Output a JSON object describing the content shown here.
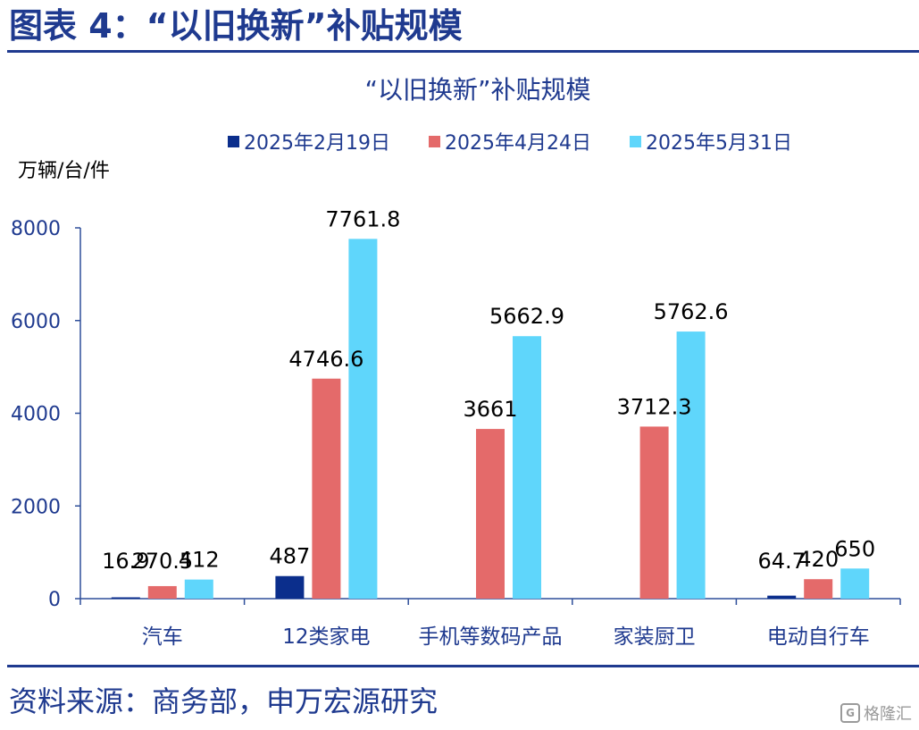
{
  "header": {
    "title": "图表 4：“以旧换新”补贴规模"
  },
  "source": {
    "text": "资料来源：商务部，申万宏源研究"
  },
  "watermark": {
    "text": "格隆汇",
    "logo": "G"
  },
  "colors": {
    "brand": "#1f3a8f",
    "series": [
      "#0b2e8c",
      "#e46a6a",
      "#5fd6fb"
    ]
  },
  "chart_data": {
    "type": "bar",
    "title": "“以旧换新”补贴规模",
    "unit_label": "万辆/台/件",
    "categories": [
      "汽车",
      "12类家电",
      "手机等数码产品",
      "家装厨卫",
      "电动自行车"
    ],
    "series": [
      {
        "name": "2025年2月19日",
        "values": [
          16.9,
          487,
          null,
          null,
          64.7
        ],
        "labels": [
          "16.9",
          "487",
          "",
          "",
          "64.7"
        ]
      },
      {
        "name": "2025年4月24日",
        "values": [
          270.5,
          4746.6,
          3661,
          3712.3,
          420
        ],
        "labels": [
          "270.5",
          "4746.6",
          "3661",
          "3712.3",
          "420"
        ]
      },
      {
        "name": "2025年5月31日",
        "values": [
          412,
          7761.8,
          5662.9,
          5762.6,
          650
        ],
        "labels": [
          "412",
          "7761.8",
          "5662.9",
          "5762.6",
          "650"
        ]
      }
    ],
    "ylim": [
      0,
      8000
    ],
    "yticks": [
      "0",
      "2000",
      "4000",
      "6000",
      "8000"
    ],
    "legend_position": "top",
    "grid": false
  }
}
